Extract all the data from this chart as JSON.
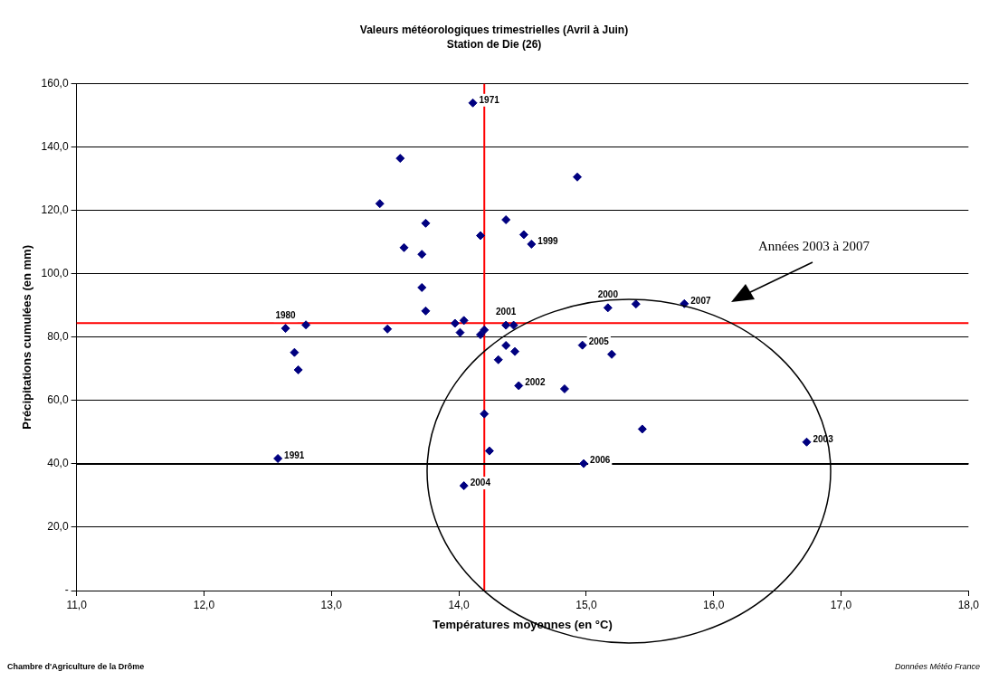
{
  "chart_data": {
    "type": "scatter",
    "title": "Valeurs météorologiques trimestrielles (Avril à Juin)",
    "subtitle": "Station de Die (26)",
    "xlabel": "Températures moyennes (en °C)",
    "ylabel": "Précipitations cumulées (en mm)",
    "xlim": [
      11,
      18
    ],
    "ylim": [
      0,
      160
    ],
    "xticks": [
      {
        "value": 11,
        "label": "11,0"
      },
      {
        "value": 12,
        "label": "12,0"
      },
      {
        "value": 13,
        "label": "13,0"
      },
      {
        "value": 14,
        "label": "14,0"
      },
      {
        "value": 15,
        "label": "15,0"
      },
      {
        "value": 16,
        "label": "16,0"
      },
      {
        "value": 17,
        "label": "17,0"
      },
      {
        "value": 18,
        "label": "18,0"
      }
    ],
    "yticks": [
      {
        "value": 0,
        "label": "-"
      },
      {
        "value": 20,
        "label": "20,0"
      },
      {
        "value": 40,
        "label": "40,0"
      },
      {
        "value": 60,
        "label": "60,0"
      },
      {
        "value": 80,
        "label": "80,0"
      },
      {
        "value": 100,
        "label": "100,0"
      },
      {
        "value": 120,
        "label": "120,0"
      },
      {
        "value": 140,
        "label": "140,0"
      },
      {
        "value": 160,
        "label": "160,0"
      }
    ],
    "grid": "y",
    "legend": false,
    "marker": "diamond",
    "series": [
      {
        "color": "#000080",
        "x": [
          14.11,
          13.54,
          14.93,
          13.38,
          13.74,
          14.37,
          14.17,
          14.51,
          14.57,
          13.57,
          13.71,
          13.71,
          13.74,
          15.17,
          15.39,
          12.64,
          12.8,
          13.44,
          13.97,
          14.04,
          14.01,
          14.2,
          14.17,
          14.37,
          14.43,
          12.71,
          12.74,
          14.37,
          14.44,
          14.31,
          14.97,
          15.2,
          14.47,
          14.83,
          14.2,
          14.24,
          12.58,
          14.98,
          14.04,
          15.44,
          15.77,
          16.73
        ],
        "values": [
          154,
          136.5,
          130.6,
          122.2,
          116,
          117.1,
          112.1,
          112.4,
          109.4,
          108.3,
          106.2,
          95.7,
          88.3,
          89.3,
          90.5,
          82.8,
          83.9,
          82.6,
          84.4,
          85.3,
          81.5,
          82.3,
          80.8,
          83.8,
          83.8,
          75.2,
          69.7,
          77.4,
          75.5,
          72.9,
          77.5,
          74.6,
          64.7,
          63.7,
          55.8,
          44.1,
          41.7,
          40.1,
          33.1,
          51,
          90.6,
          46.9
        ]
      }
    ],
    "ref_lines": [
      {
        "axis": "x",
        "value": 14.2,
        "color": "#ff0000"
      },
      {
        "axis": "y",
        "value": 84.5,
        "color": "#ff0000"
      },
      {
        "axis": "y",
        "value": 40,
        "color": "#000000"
      }
    ],
    "annotations": [
      "Chambre d'Agriculture de la Drôme",
      "Données Météo France",
      "Années 2003 à 2007",
      {
        "text": "1971",
        "x": 14.11,
        "y": 154
      },
      {
        "text": "1999",
        "x": 14.57,
        "y": 109.4
      },
      {
        "text": "2000",
        "x": 15.17,
        "y": 89.3
      },
      {
        "text": "1980",
        "x": 12.64,
        "y": 82.8
      },
      {
        "text": "2001",
        "x": 14.37,
        "y": 83.8
      },
      {
        "text": "2005",
        "x": 14.97,
        "y": 77.5
      },
      {
        "text": "2002",
        "x": 14.47,
        "y": 64.7
      },
      {
        "text": "1991",
        "x": 12.58,
        "y": 41.7
      },
      {
        "text": "2006",
        "x": 14.98,
        "y": 40.1
      },
      {
        "text": "2004",
        "x": 14.04,
        "y": 33.1
      },
      {
        "text": "2007",
        "x": 15.77,
        "y": 90.6
      },
      {
        "text": "2003",
        "x": 16.73,
        "y": 46.9
      }
    ]
  }
}
